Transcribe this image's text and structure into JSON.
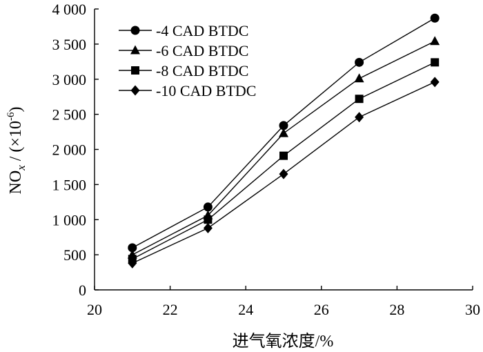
{
  "chart_data": {
    "type": "line",
    "title": "",
    "xlabel": "进气氧浓度/%",
    "ylabel_main": "NO",
    "ylabel_sub": "x",
    "ylabel_unit_open": " / (×10",
    "ylabel_unit_exp": "-6",
    "ylabel_unit_close": ")",
    "xlim": [
      20,
      30
    ],
    "ylim": [
      0,
      4000
    ],
    "x_ticks": [
      20,
      22,
      24,
      26,
      28,
      30
    ],
    "x_tick_labels": [
      "20",
      "22",
      "24",
      "26",
      "28",
      "30"
    ],
    "y_ticks": [
      0,
      500,
      1000,
      1500,
      2000,
      2500,
      3000,
      3500,
      4000
    ],
    "y_tick_labels": [
      "0",
      "500",
      "1 000",
      "1 500",
      "2 000",
      "2 500",
      "3 000",
      "3 500",
      "4 000"
    ],
    "x": [
      21,
      23,
      25,
      27,
      29
    ],
    "legend_position": "top-left",
    "series": [
      {
        "name": "-4 CAD BTDC",
        "marker": "circle",
        "values": [
          600,
          1180,
          2340,
          3240,
          3870
        ]
      },
      {
        "name": "-6 CAD BTDC",
        "marker": "triangle",
        "values": [
          500,
          1060,
          2230,
          3010,
          3540
        ]
      },
      {
        "name": "-8 CAD BTDC",
        "marker": "square",
        "values": [
          440,
          1000,
          1910,
          2720,
          3240
        ]
      },
      {
        "name": "-10 CAD BTDC",
        "marker": "diamond",
        "values": [
          380,
          880,
          1650,
          2460,
          2960
        ]
      }
    ]
  }
}
